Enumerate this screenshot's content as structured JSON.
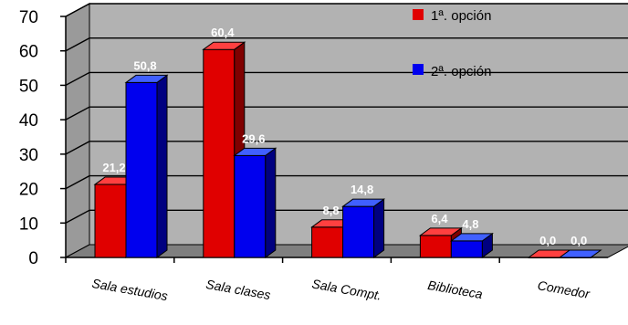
{
  "chart_data": {
    "type": "bar",
    "title": "",
    "xlabel": "",
    "ylabel": "",
    "categories": [
      "Sala estudios",
      "Sala clases",
      "Sala Compt.",
      "Biblioteca",
      "Comedor"
    ],
    "series": [
      {
        "name": "1ª. opción",
        "values": [
          21.2,
          60.4,
          8.8,
          6.4,
          0.0
        ],
        "labels": [
          "21,2",
          "60,4",
          "8,8",
          "6,4",
          "0,0"
        ],
        "color": "#e00000",
        "side_color": "#800000",
        "top_color": "#ff4040"
      },
      {
        "name": "2ª. opción",
        "values": [
          50.8,
          29.6,
          14.8,
          4.8,
          0.0
        ],
        "labels": [
          "50,8",
          "29,6",
          "14,8",
          "4,8",
          "0,0"
        ],
        "color": "#0000ee",
        "side_color": "#000080",
        "top_color": "#4060ff"
      }
    ],
    "yticks": [
      "0",
      "10",
      "20",
      "30",
      "40",
      "50",
      "60",
      "70"
    ],
    "ylim": [
      0,
      70
    ],
    "grid": true,
    "legend_position": "top-right",
    "wall_color": "#b2b2b2",
    "floor_color": "#7f7f7f"
  }
}
